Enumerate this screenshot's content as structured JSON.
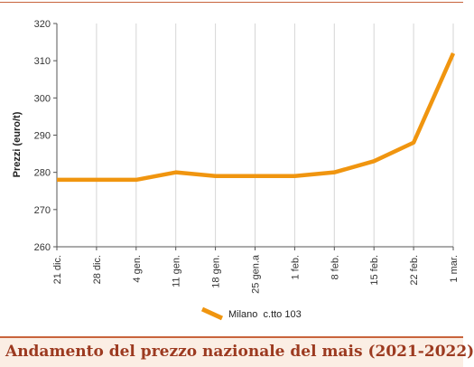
{
  "caption": "Andamento del prezzo nazionale del mais (2021-2022)",
  "chart_data": {
    "type": "line",
    "title": "",
    "xlabel": "",
    "ylabel": "Prezzi (euro/t)",
    "categories": [
      "21 dic.",
      "28 dic.",
      "4 gen.",
      "11 gen.",
      "18 gen.",
      "25 gen.a",
      "1 feb.",
      "8 feb.",
      "15 feb.",
      "22 feb.",
      "1 mar."
    ],
    "yticks": [
      260,
      270,
      280,
      290,
      300,
      310,
      320
    ],
    "ylim": [
      260,
      320
    ],
    "grid": "vertical",
    "legend": "bottom-center",
    "series": [
      {
        "name": "Milano  c.tto 103",
        "color": "#f0950f",
        "values": [
          278,
          278,
          278,
          280,
          279,
          279,
          279,
          280,
          283,
          288,
          312
        ]
      }
    ]
  }
}
